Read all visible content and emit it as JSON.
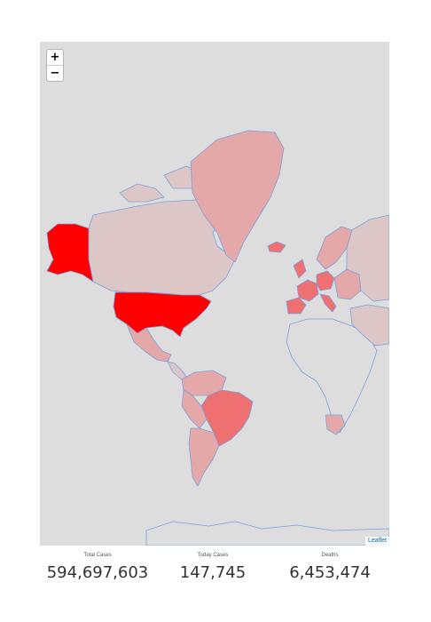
{
  "map": {
    "zoom_in_label": "+",
    "zoom_out_label": "−",
    "attribution": "Leaflet",
    "colors": {
      "background": "#dddddd",
      "border": "#7aa0e0",
      "highest": "#ff0000",
      "high": "#ee7070",
      "medium": "#e4a8a8",
      "low": "#dcc6c6"
    }
  },
  "stats": {
    "total_cases_label": "Total Cases",
    "total_cases_value": "594,697,603",
    "today_cases_label": "Today Cases",
    "today_cases_value": "147,745",
    "deaths_label": "Deaths",
    "deaths_value": "6,453,474"
  }
}
